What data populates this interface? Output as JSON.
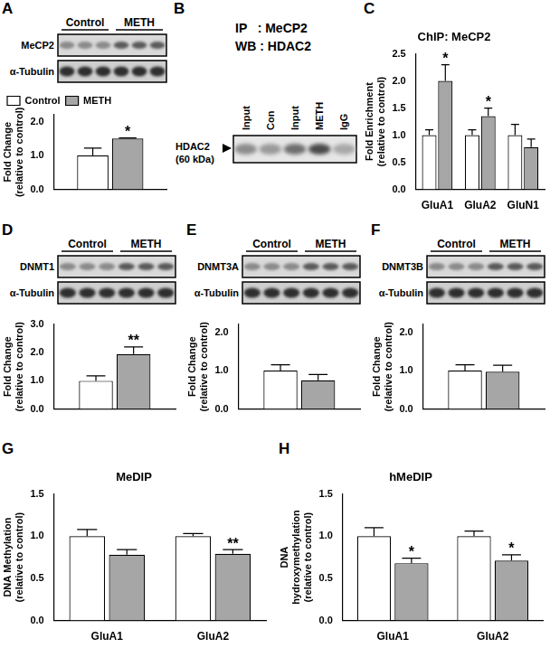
{
  "chart_data": [
    {
      "panel": "A",
      "type": "bar",
      "blot": {
        "groups": [
          "Control",
          "METH"
        ],
        "rows": [
          "MeCP2",
          "α-Tubulin"
        ]
      },
      "y_label": [
        "Fold Change",
        "(relative to control)"
      ],
      "categories": [
        null
      ],
      "series": [
        {
          "name": "Control",
          "color": "#ffffff",
          "values": [
            1.0
          ],
          "errors": [
            0.22
          ],
          "significance": [
            null
          ]
        },
        {
          "name": "METH",
          "color": "#a6a6a6",
          "values": [
            1.5
          ],
          "errors": [
            0.02
          ],
          "significance": [
            "*"
          ]
        }
      ],
      "ylim": [
        0,
        2.2
      ],
      "yticks": [
        {
          "value": 0,
          "label": "0.0"
        },
        {
          "value": 1,
          "label": "1.0"
        },
        {
          "value": 2,
          "label": "2.0"
        }
      ],
      "legend": "top-left",
      "grid": false
    },
    {
      "panel": "C",
      "type": "bar",
      "title": "ChIP: MeCP2",
      "y_label": [
        "Fold Enrichment",
        "(relative to control)"
      ],
      "categories": [
        "GluA1",
        "GluA2",
        "GluN1"
      ],
      "series": [
        {
          "name": "Control",
          "color": "#ffffff",
          "values": [
            1.0,
            1.0,
            1.0
          ],
          "errors": [
            0.1,
            0.1,
            0.2
          ],
          "significance": [
            null,
            null,
            null
          ]
        },
        {
          "name": "METH",
          "color": "#a6a6a6",
          "values": [
            2.0,
            1.35,
            0.78
          ],
          "errors": [
            0.3,
            0.15,
            0.15
          ],
          "significance": [
            "*",
            "*",
            null
          ]
        }
      ],
      "ylim": [
        0,
        2.5
      ],
      "yticks": [
        {
          "value": 0,
          "label": "0.0"
        },
        {
          "value": 0.5,
          "label": "0.5"
        },
        {
          "value": 1,
          "label": "1.0"
        },
        {
          "value": 1.5,
          "label": "1.5"
        },
        {
          "value": 2,
          "label": "2.0"
        },
        {
          "value": 2.5,
          "label": "2.5"
        }
      ],
      "grid": false
    },
    {
      "panel": "D",
      "type": "bar",
      "blot": {
        "groups": [
          "Control",
          "METH"
        ],
        "rows": [
          "DNMT1",
          "α-Tubulin"
        ]
      },
      "y_label": [
        "Fold Change",
        "(relative to control)"
      ],
      "categories": [
        null
      ],
      "series": [
        {
          "name": "Control",
          "color": "#ffffff",
          "values": [
            1.0
          ],
          "errors": [
            0.18
          ],
          "significance": [
            null
          ]
        },
        {
          "name": "METH",
          "color": "#a6a6a6",
          "values": [
            1.95
          ],
          "errors": [
            0.25
          ],
          "significance": [
            "**"
          ]
        }
      ],
      "ylim": [
        0,
        3.0
      ],
      "yticks": [
        {
          "value": 0,
          "label": "0.0"
        },
        {
          "value": 1,
          "label": "1.0"
        },
        {
          "value": 2,
          "label": "2.0"
        },
        {
          "value": 3,
          "label": "3.0"
        }
      ],
      "grid": false
    },
    {
      "panel": "E",
      "type": "bar",
      "blot": {
        "groups": [
          "Control",
          "METH"
        ],
        "rows": [
          "DNMT3A",
          "α-Tubulin"
        ]
      },
      "y_label": [
        "Fold Change",
        "(relative to control)"
      ],
      "categories": [
        null
      ],
      "series": [
        {
          "name": "Control",
          "color": "#ffffff",
          "values": [
            1.0
          ],
          "errors": [
            0.15
          ],
          "significance": [
            null
          ]
        },
        {
          "name": "METH",
          "color": "#a6a6a6",
          "values": [
            0.75
          ],
          "errors": [
            0.15
          ],
          "significance": [
            null
          ]
        }
      ],
      "ylim": [
        0,
        2.2
      ],
      "yticks": [
        {
          "value": 0,
          "label": "0.0"
        },
        {
          "value": 1,
          "label": "1.0"
        },
        {
          "value": 2,
          "label": "2.0"
        }
      ],
      "grid": false
    },
    {
      "panel": "F",
      "type": "bar",
      "blot": {
        "groups": [
          "Control",
          "METH"
        ],
        "rows": [
          "DNMT3B",
          "α-Tubulin"
        ]
      },
      "y_label": [
        "Fold Change",
        "(relative to control)"
      ],
      "categories": [
        null
      ],
      "series": [
        {
          "name": "Control",
          "color": "#ffffff",
          "values": [
            1.0
          ],
          "errors": [
            0.15
          ],
          "significance": [
            null
          ]
        },
        {
          "name": "METH",
          "color": "#a6a6a6",
          "values": [
            0.97
          ],
          "errors": [
            0.17
          ],
          "significance": [
            null
          ]
        }
      ],
      "ylim": [
        0,
        2.2
      ],
      "yticks": [
        {
          "value": 0,
          "label": "0.0"
        },
        {
          "value": 1,
          "label": "1.0"
        },
        {
          "value": 2,
          "label": "2.0"
        }
      ],
      "grid": false
    },
    {
      "panel": "G",
      "type": "bar",
      "title": "MeDIP",
      "y_label": [
        "DNA Methylation",
        "(relative to control)"
      ],
      "categories": [
        "GluA1",
        "GluA2"
      ],
      "series": [
        {
          "name": "Control",
          "color": "#ffffff",
          "values": [
            1.0,
            1.0
          ],
          "errors": [
            0.08,
            0.03
          ],
          "significance": [
            null,
            null
          ]
        },
        {
          "name": "METH",
          "color": "#a6a6a6",
          "values": [
            0.78,
            0.79
          ],
          "errors": [
            0.06,
            0.05
          ],
          "significance": [
            null,
            "**"
          ]
        }
      ],
      "ylim": [
        0,
        1.5
      ],
      "yticks": [
        {
          "value": 0,
          "label": "0.0"
        },
        {
          "value": 0.5,
          "label": "0.5"
        },
        {
          "value": 1,
          "label": "1.0"
        },
        {
          "value": 1.5,
          "label": "1.5"
        }
      ],
      "grid": false
    },
    {
      "panel": "H",
      "type": "bar",
      "title": "hMeDIP",
      "y_label": [
        "DNA",
        "hydroxymethylation",
        "(relative to control)"
      ],
      "categories": [
        "GluA1",
        "GluA2"
      ],
      "series": [
        {
          "name": "Control",
          "color": "#ffffff",
          "values": [
            1.0,
            1.0
          ],
          "errors": [
            0.1,
            0.06
          ],
          "significance": [
            null,
            null
          ]
        },
        {
          "name": "METH",
          "color": "#a6a6a6",
          "values": [
            0.68,
            0.71
          ],
          "errors": [
            0.06,
            0.07
          ],
          "significance": [
            "*",
            "*"
          ]
        }
      ],
      "ylim": [
        0,
        1.5
      ],
      "yticks": [
        {
          "value": 0,
          "label": "0.0"
        },
        {
          "value": 0.5,
          "label": "0.5"
        },
        {
          "value": 1,
          "label": "1.0"
        },
        {
          "value": 1.5,
          "label": "1.5"
        }
      ],
      "grid": false
    }
  ],
  "diagram": {
    "panel": "B",
    "title_lines": [
      "IP   : MeCP2",
      "WB : HDAC2"
    ],
    "lane_labels": [
      "Input",
      "Con",
      "Input",
      "METH",
      "IgG"
    ],
    "band_label": [
      "HDAC2",
      "(60 kDa)"
    ]
  }
}
